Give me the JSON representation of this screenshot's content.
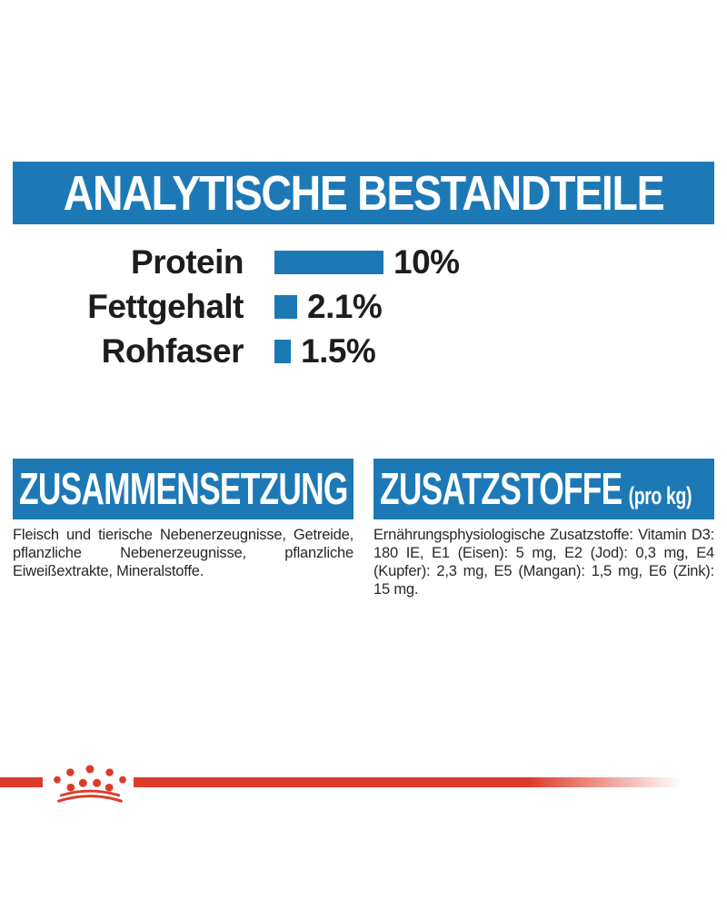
{
  "colors": {
    "brand_blue": "#1d79b6",
    "brand_red": "#dc3b2b",
    "label_black": "#1d1d1b",
    "body_text": "#2a2627"
  },
  "chart_data": {
    "type": "bar",
    "orientation": "horizontal",
    "title": "ANALYTISCHE BESTANDTEILE",
    "categories": [
      "Protein",
      "Fettgehalt",
      "Rohfaser"
    ],
    "values": [
      10,
      2.1,
      1.5
    ],
    "value_labels": [
      "10%",
      "2.1%",
      "1.5%"
    ],
    "unit": "%",
    "xlim": [
      0,
      10
    ],
    "bar_color": "#1d79b6",
    "grid": false,
    "legend": "none"
  },
  "sections": {
    "composition": {
      "title": "ZUSAMMENSETZUNG",
      "body": "Fleisch und tierische Nebenerzeugnisse, Getreide, pflanzliche Nebenerzeugnisse, pflanzliche Eiweißextrakte, Mineralstoffe."
    },
    "additives": {
      "title": "ZUSATZSTOFFE",
      "title_suffix": "(pro kg)",
      "body": "Ernährungsphysiologische Zusatzstoffe: Vitamin D3: 180 IE, E1 (Eisen): 5 mg, E2 (Jod): 0,3 mg, E4 (Kupfer): 2,3 mg, E5 (Mangan): 1,5 mg, E6 (Zink): 15 mg."
    }
  },
  "footer": {
    "logo_icon": "royal-canin-crown"
  }
}
